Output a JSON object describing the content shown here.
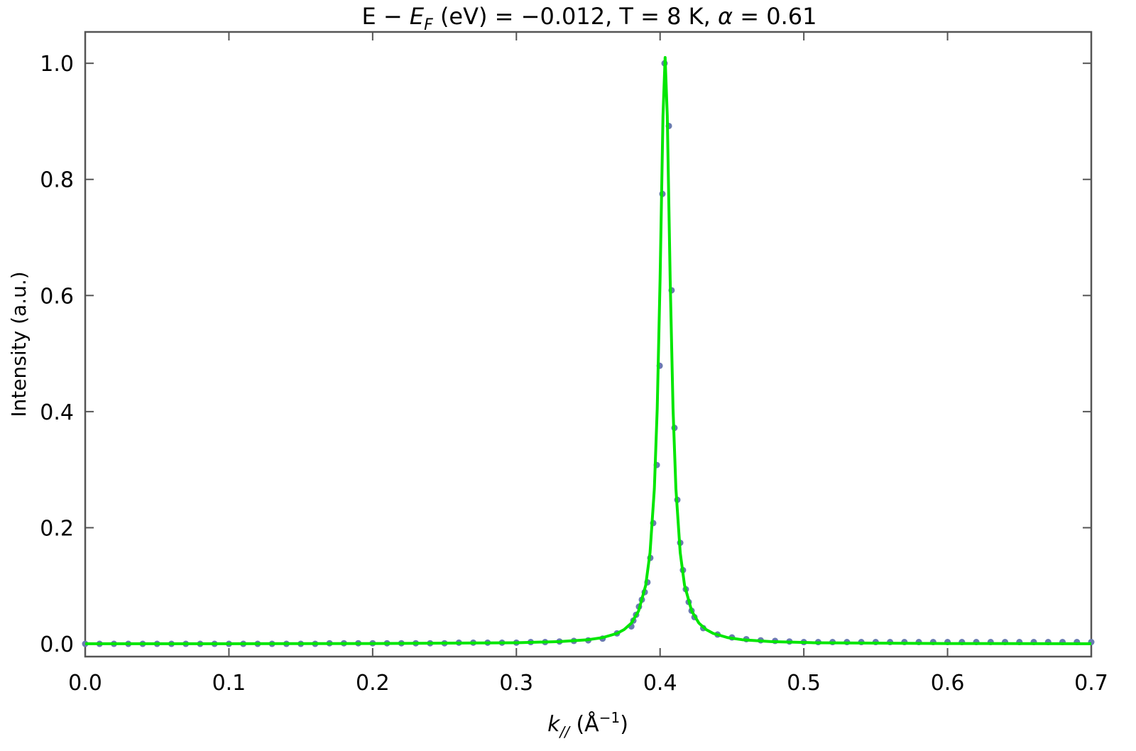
{
  "chart_data": {
    "type": "scatter",
    "title": [
      "E − ",
      "E",
      "F",
      " (eV) = −0.012, T = 8 K, ",
      "α",
      " = 0.61"
    ],
    "x_label": [
      "k",
      "//",
      " (Å",
      "−1",
      ")"
    ],
    "y_label": "Intensity (a.u.)",
    "xlim": [
      0,
      0.7
    ],
    "ylim": [
      -0.022,
      1.054
    ],
    "xticks": [
      {
        "value": 0,
        "label": "0.0"
      },
      0.1,
      0.2,
      0.3,
      0.4,
      0.5,
      0.6,
      0.7
    ],
    "yticks": [
      {
        "value": 0,
        "label": "0.0"
      },
      0.2,
      0.4,
      0.6,
      0.8,
      {
        "value": 1,
        "label": "1.0"
      }
    ],
    "grid": false,
    "series": [
      {
        "type": "scatter",
        "color": "#6a7bb0",
        "x": [
          0,
          0.01,
          0.02,
          0.03,
          0.04,
          0.05,
          0.06,
          0.07,
          0.08,
          0.09,
          0.1,
          0.11,
          0.12,
          0.13,
          0.14,
          0.15,
          0.16,
          0.17,
          0.18,
          0.19,
          0.2,
          0.21,
          0.22,
          0.23,
          0.24,
          0.25,
          0.26,
          0.27,
          0.28,
          0.29,
          0.3,
          0.31,
          0.32,
          0.33,
          0.34,
          0.35,
          0.36,
          0.37,
          0.38,
          0.3814,
          0.3833,
          0.3853,
          0.3873,
          0.3893,
          0.3912,
          0.3932,
          0.3952,
          0.3977,
          0.3997,
          0.4016,
          0.4031,
          0.4061,
          0.408,
          0.41,
          0.412,
          0.414,
          0.4159,
          0.4179,
          0.4199,
          0.4219,
          0.4239,
          0.43,
          0.44,
          0.45,
          0.46,
          0.47,
          0.48,
          0.49,
          0.5,
          0.51,
          0.52,
          0.53,
          0.54,
          0.55,
          0.56,
          0.57,
          0.58,
          0.59,
          0.6,
          0.61,
          0.62,
          0.63,
          0.64,
          0.65,
          0.66,
          0.67,
          0.68,
          0.69,
          0.7
        ],
        "values": [
          0,
          0,
          0,
          0,
          0,
          0,
          0,
          0,
          0,
          0,
          0,
          0,
          0,
          0,
          0,
          0,
          0,
          0.001,
          0.001,
          0.001,
          0.001,
          0.001,
          0.001,
          0.001,
          0.001,
          0.001,
          0.002,
          0.002,
          0.002,
          0.002,
          0.002,
          0.003,
          0.003,
          0.004,
          0.005,
          0.006,
          0.009,
          0.018,
          0.03,
          0.04,
          0.05,
          0.064,
          0.076,
          0.089,
          0.106,
          0.148,
          0.208,
          0.308,
          0.479,
          0.775,
          1.0,
          0.892,
          0.609,
          0.372,
          0.248,
          0.174,
          0.127,
          0.094,
          0.072,
          0.057,
          0.046,
          0.027,
          0.016,
          0.011,
          0.008,
          0.006,
          0.005,
          0.004,
          0.003,
          0.003,
          0.003,
          0.003,
          0.003,
          0.003,
          0.003,
          0.003,
          0.003,
          0.003,
          0.003,
          0.003,
          0.003,
          0.003,
          0.003,
          0.003,
          0.003,
          0.003,
          0.003,
          0.003,
          0.003
        ]
      },
      {
        "type": "line",
        "color": "#00e600",
        "x": [
          0,
          0.1,
          0.2,
          0.3,
          0.33,
          0.35,
          0.36,
          0.37,
          0.375,
          0.38,
          0.385,
          0.39,
          0.393,
          0.396,
          0.398,
          0.4,
          0.402,
          0.4035,
          0.405,
          0.407,
          0.409,
          0.411,
          0.414,
          0.417,
          0.422,
          0.427,
          0.432,
          0.437,
          0.447,
          0.457,
          0.477,
          0.507,
          0.6,
          0.7
        ],
        "values": [
          0.0001,
          0.0002,
          0.0005,
          0.0019,
          0.0038,
          0.0071,
          0.0107,
          0.0179,
          0.0246,
          0.0357,
          0.0564,
          0.101,
          0.157,
          0.267,
          0.405,
          0.629,
          0.909,
          1.01,
          0.909,
          0.629,
          0.405,
          0.267,
          0.157,
          0.101,
          0.0564,
          0.0357,
          0.0246,
          0.0179,
          0.0107,
          0.0071,
          0.0038,
          0.0019,
          0.0005,
          0.0002
        ]
      }
    ]
  }
}
